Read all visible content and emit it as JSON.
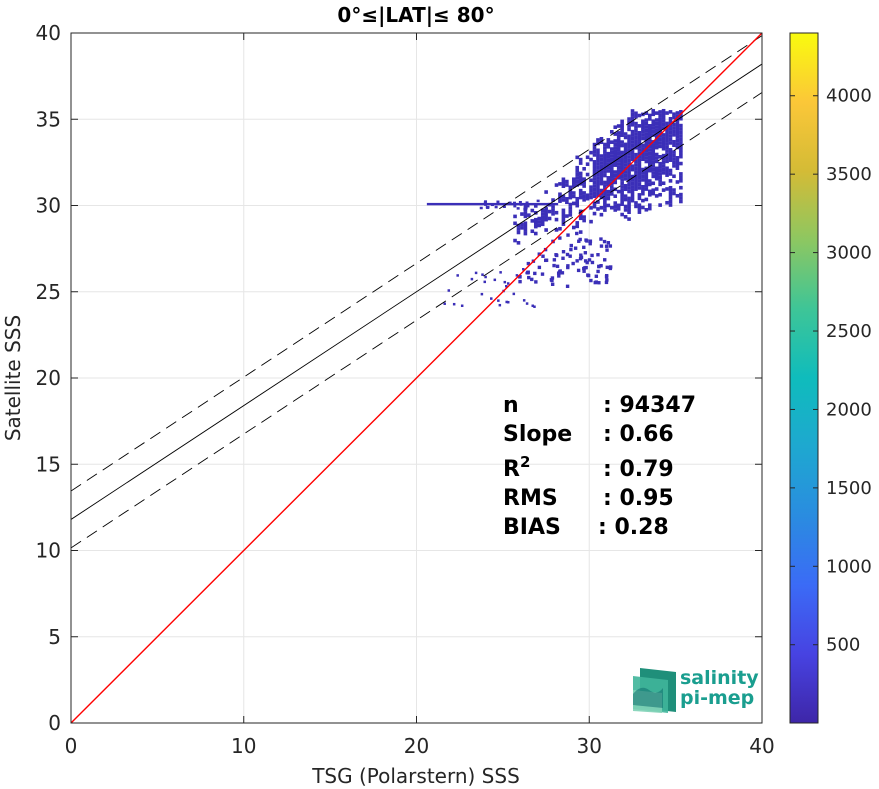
{
  "chart_data": {
    "type": "heatmap",
    "title": "0°≤|LAT|≤ 80°",
    "xlabel": "TSG (Polarstern) SSS",
    "ylabel": "Satellite SSS",
    "xlim": [
      0,
      40
    ],
    "ylim": [
      0,
      40
    ],
    "xticks": [
      0,
      10,
      20,
      30,
      40
    ],
    "yticks": [
      0,
      5,
      10,
      15,
      20,
      25,
      30,
      35,
      40
    ],
    "grid": true,
    "colorbar": {
      "colormap": "parula",
      "range": [
        1,
        4400
      ],
      "ticks": [
        500,
        1000,
        1500,
        2000,
        2500,
        3000,
        3500,
        4000
      ]
    },
    "density_region": {
      "x_range": [
        20.5,
        35.5
      ],
      "y_range": [
        24.5,
        35.5
      ],
      "dominant_color": "#3b2fb8"
    },
    "lines": {
      "identity": {
        "slope": 1,
        "intercept": 0,
        "color": "#ff0000"
      },
      "fit": {
        "slope": 0.66,
        "intercept": 11.8,
        "color": "#000000"
      },
      "fit_upper": {
        "slope": 0.66,
        "intercept": 13.45,
        "color": "#000000",
        "style": "dashed"
      },
      "fit_lower": {
        "slope": 0.66,
        "intercept": 10.15,
        "color": "#000000",
        "style": "dashed"
      }
    },
    "stats": [
      {
        "label": "n",
        "value": ": 94347"
      },
      {
        "label": "Slope",
        "value": ": 0.66"
      },
      {
        "label": "R",
        "superscript": "2",
        "value": ": 0.79"
      },
      {
        "label": "RMS",
        "value": ": 0.95"
      },
      {
        "label": "BIAS",
        "value": ": 0.28"
      }
    ]
  },
  "logo": {
    "line1": "salinity",
    "line2": "pi-mep",
    "colors": [
      "#1f8f7a",
      "#3fb59a",
      "#7fd2b6",
      "#0f6e6e"
    ]
  }
}
